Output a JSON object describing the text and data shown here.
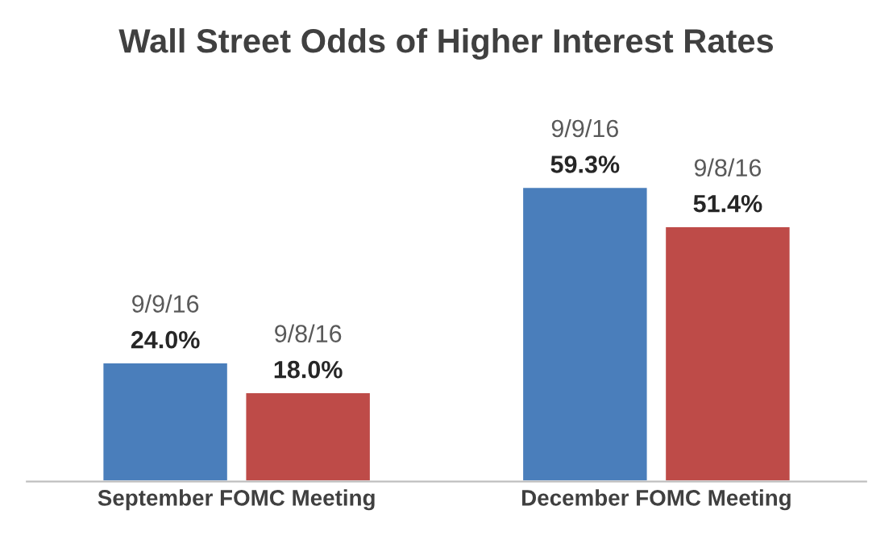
{
  "chart_data": {
    "type": "bar",
    "title": "Wall Street Odds of Higher Interest Rates",
    "categories": [
      "September FOMC Meeting",
      "December FOMC Meeting"
    ],
    "series": [
      {
        "name": "9/9/16",
        "color": "#4a7ebb",
        "values": [
          24.0,
          59.3
        ],
        "value_labels": [
          "24.0%",
          "59.3%"
        ]
      },
      {
        "name": "9/8/16",
        "color": "#be4b48",
        "values": [
          18.0,
          51.4
        ],
        "value_labels": [
          "18.0%",
          "51.4%"
        ]
      }
    ],
    "grid": false,
    "legend": false,
    "tick_labels": "x"
  }
}
